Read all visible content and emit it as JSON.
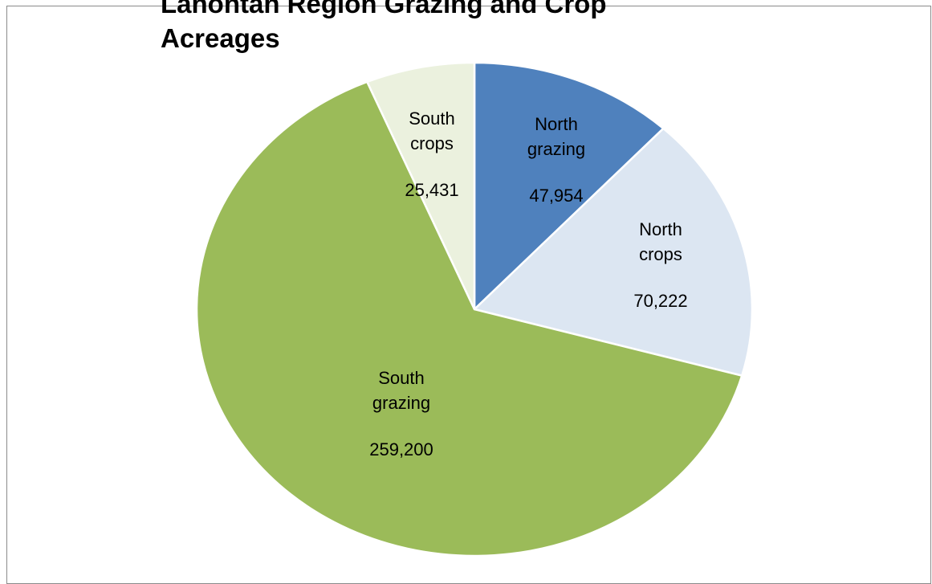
{
  "chart_data": {
    "type": "pie",
    "title_lines": [
      "Lahontan Region Grazing and Crop",
      "Acreages"
    ],
    "slices": [
      {
        "label_lines": [
          "North",
          "grazing"
        ],
        "value": 47954,
        "value_label": "47,954",
        "color": "#4f81bd"
      },
      {
        "label_lines": [
          "North",
          "crops"
        ],
        "value": 70222,
        "value_label": "70,222",
        "color": "#dce6f2"
      },
      {
        "label_lines": [
          "South",
          "grazing"
        ],
        "value": 259200,
        "value_label": "259,200",
        "color": "#9bbb59"
      },
      {
        "label_lines": [
          "South",
          "crops"
        ],
        "value": 25431,
        "value_label": "25,431",
        "color": "#ebf1de"
      }
    ],
    "start": "12 o'clock",
    "direction": "clockwise",
    "legend": "none"
  }
}
